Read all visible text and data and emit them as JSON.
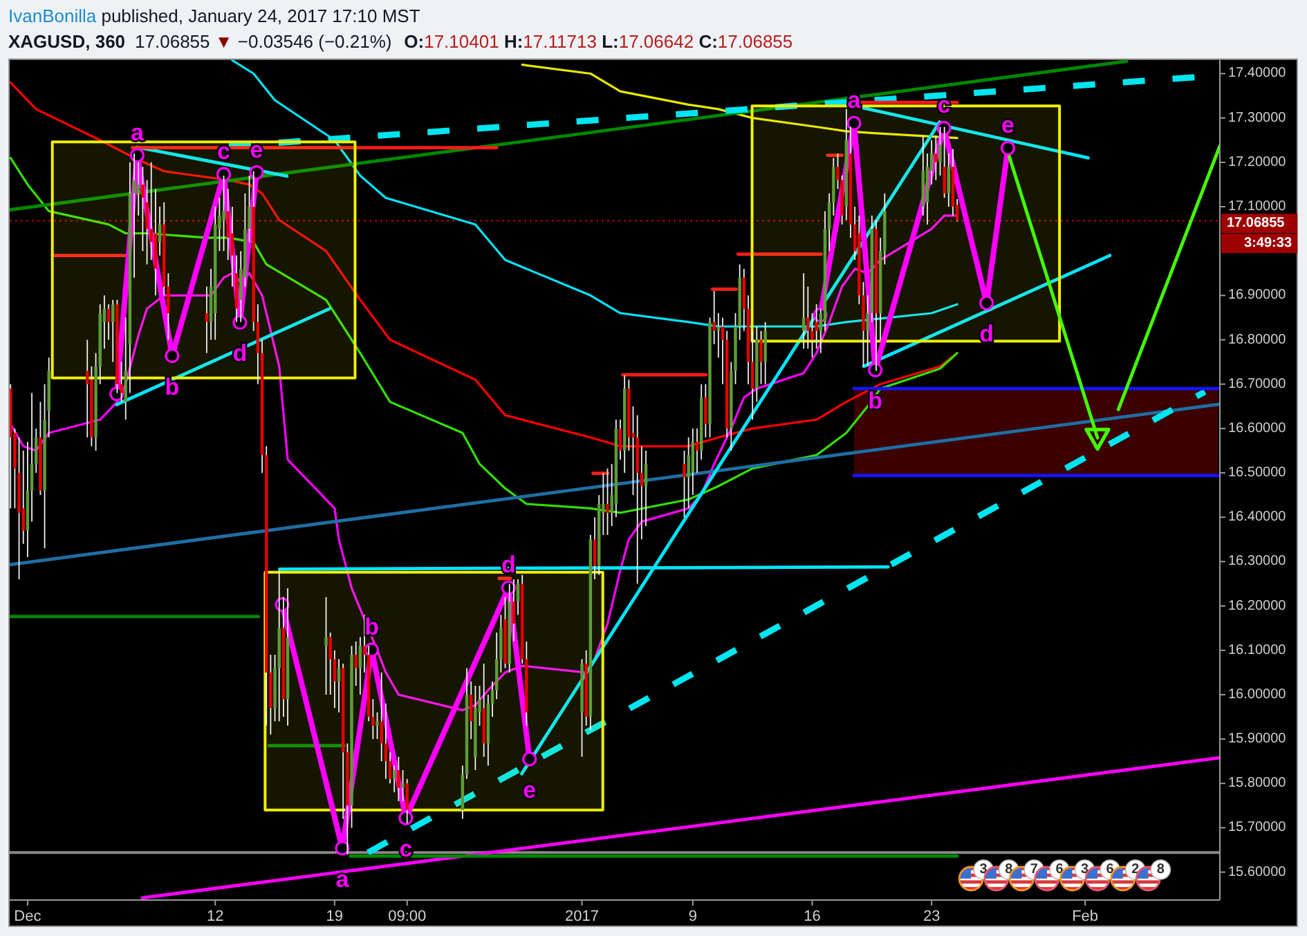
{
  "chart_data": {
    "type": "candlestick",
    "title": "XAGUSD, 360",
    "subtitle": "IvanBonilla published, January 24, 2017 17:10 MST",
    "x": [
      "2016-11-30T03:00",
      "2016-11-30T09:00",
      "2016-11-30T15:00",
      "2016-11-30T21:00",
      "2016-12-01T03:00",
      "2016-12-01T09:00",
      "2016-12-01T15:00",
      "2016-12-01T21:00",
      "2016-12-02T03:00",
      "2016-12-02T09:00",
      "2016-12-04T15:00",
      "2016-12-04T21:00",
      "2016-12-05T03:00",
      "2016-12-05T09:00",
      "2016-12-05T15:00",
      "2016-12-05T21:00",
      "2016-12-06T03:00",
      "2016-12-06T09:00",
      "2016-12-06T15:00",
      "2016-12-06T21:00",
      "2016-12-07T03:00",
      "2016-12-07T09:00",
      "2016-12-07T15:00",
      "2016-12-07T21:00",
      "2016-12-08T03:00",
      "2016-12-08T09:00",
      "2016-12-08T15:00",
      "2016-12-08T21:00",
      "2016-12-09T03:00",
      "2016-12-09T09:00",
      "2016-12-11T15:00",
      "2016-12-11T21:00",
      "2016-12-12T03:00",
      "2016-12-12T09:00",
      "2016-12-12T15:00",
      "2016-12-12T21:00",
      "2016-12-13T03:00",
      "2016-12-13T09:00",
      "2016-12-13T15:00",
      "2016-12-13T21:00",
      "2016-12-14T03:00",
      "2016-12-14T09:00",
      "2016-12-14T15:00",
      "2016-12-14T21:00",
      "2016-12-15T03:00",
      "2016-12-15T09:00",
      "2016-12-15T15:00",
      "2016-12-15T21:00",
      "2016-12-16T03:00",
      "2016-12-16T09:00",
      "2016-12-18T15:00",
      "2016-12-18T21:00",
      "2016-12-19T03:00",
      "2016-12-19T09:00",
      "2016-12-19T15:00",
      "2016-12-19T21:00",
      "2016-12-20T03:00",
      "2016-12-20T09:00",
      "2016-12-20T15:00",
      "2016-12-20T21:00",
      "2016-12-21T03:00",
      "2016-12-21T09:00",
      "2016-12-21T15:00",
      "2016-12-21T21:00",
      "2016-12-22T03:00",
      "2016-12-22T09:00",
      "2016-12-22T15:00",
      "2016-12-22T21:00",
      "2016-12-23T03:00",
      "2016-12-23T09:00",
      "2016-12-26T15:00",
      "2016-12-26T21:00",
      "2016-12-27T03:00",
      "2016-12-27T09:00",
      "2016-12-27T15:00",
      "2016-12-27T21:00",
      "2016-12-28T03:00",
      "2016-12-28T09:00",
      "2016-12-28T15:00",
      "2016-12-28T21:00",
      "2016-12-29T03:00",
      "2016-12-29T09:00",
      "2016-12-29T15:00",
      "2016-12-29T21:00",
      "2016-12-30T03:00",
      "2016-12-30T09:00",
      "2017-01-02T15:00",
      "2017-01-02T21:00",
      "2017-01-03T03:00",
      "2017-01-03T09:00",
      "2017-01-03T15:00",
      "2017-01-03T21:00",
      "2017-01-04T03:00",
      "2017-01-04T09:00",
      "2017-01-04T15:00",
      "2017-01-04T21:00",
      "2017-01-05T03:00",
      "2017-01-05T09:00",
      "2017-01-05T15:00",
      "2017-01-05T21:00",
      "2017-01-06T03:00",
      "2017-01-06T09:00",
      "2017-01-08T15:00",
      "2017-01-08T21:00",
      "2017-01-09T03:00",
      "2017-01-09T09:00",
      "2017-01-09T15:00",
      "2017-01-09T21:00",
      "2017-01-10T03:00",
      "2017-01-10T09:00",
      "2017-01-10T15:00",
      "2017-01-10T21:00",
      "2017-01-11T03:00",
      "2017-01-11T09:00",
      "2017-01-11T15:00",
      "2017-01-11T21:00",
      "2017-01-12T03:00",
      "2017-01-12T09:00",
      "2017-01-12T15:00",
      "2017-01-12T21:00",
      "2017-01-13T03:00",
      "2017-01-13T09:00",
      "2017-01-15T15:00",
      "2017-01-15T21:00",
      "2017-01-16T03:00",
      "2017-01-16T09:00",
      "2017-01-16T15:00",
      "2017-01-16T21:00",
      "2017-01-17T03:00",
      "2017-01-17T09:00",
      "2017-01-17T15:00",
      "2017-01-17T21:00",
      "2017-01-18T03:00",
      "2017-01-18T09:00",
      "2017-01-18T15:00",
      "2017-01-18T21:00",
      "2017-01-19T03:00",
      "2017-01-19T09:00",
      "2017-01-19T15:00",
      "2017-01-19T21:00",
      "2017-01-20T03:00",
      "2017-01-20T09:00",
      "2017-01-22T15:00",
      "2017-01-22T21:00",
      "2017-01-23T03:00",
      "2017-01-23T09:00",
      "2017-01-23T15:00",
      "2017-01-23T21:00",
      "2017-01-24T03:00",
      "2017-01-24T09:00",
      "2017-01-24T15:00"
    ],
    "ohlc": [
      [
        16.69,
        16.7,
        16.42,
        16.58
      ],
      [
        16.59,
        16.6,
        16.42,
        16.51
      ],
      [
        16.5,
        16.58,
        16.26,
        16.41
      ],
      [
        16.42,
        16.55,
        16.34,
        16.37
      ],
      [
        16.37,
        16.57,
        16.31,
        16.46
      ],
      [
        16.46,
        16.68,
        16.39,
        16.52
      ],
      [
        16.52,
        16.6,
        16.5,
        16.58
      ],
      [
        16.58,
        16.66,
        16.45,
        16.46
      ],
      [
        16.46,
        16.7,
        16.33,
        16.62
      ],
      [
        16.64,
        16.76,
        16.58,
        16.73
      ],
      [
        16.73,
        16.8,
        16.58,
        16.7
      ],
      [
        16.71,
        16.74,
        16.56,
        16.58
      ],
      [
        16.58,
        16.77,
        16.55,
        16.74
      ],
      [
        16.74,
        16.88,
        16.7,
        16.86
      ],
      [
        16.84,
        16.9,
        16.78,
        16.87
      ],
      [
        16.87,
        16.88,
        16.8,
        16.84
      ],
      [
        16.84,
        16.89,
        16.75,
        16.88
      ],
      [
        16.88,
        16.89,
        16.68,
        16.7
      ],
      [
        16.7,
        16.75,
        16.66,
        16.68
      ],
      [
        16.66,
        16.85,
        16.62,
        16.73
      ],
      [
        16.79,
        17.2,
        16.68,
        17.13
      ],
      [
        17.13,
        17.22,
        16.94,
        17.16
      ],
      [
        17.13,
        17.2,
        17.08,
        17.15
      ],
      [
        17.15,
        17.19,
        17.0,
        17.12
      ],
      [
        17.11,
        17.16,
        16.97,
        17.05
      ],
      [
        17.05,
        17.2,
        16.98,
        17.02
      ],
      [
        17.04,
        17.14,
        16.9,
        16.96
      ],
      [
        17.02,
        17.1,
        16.99,
        17.06
      ],
      [
        17.06,
        17.11,
        16.9,
        16.92
      ],
      [
        16.92,
        16.95,
        16.8,
        16.86
      ],
      [
        16.86,
        16.92,
        16.77,
        16.84
      ],
      [
        16.84,
        16.96,
        16.8,
        16.92
      ],
      [
        16.86,
        17.1,
        16.8,
        17.06
      ],
      [
        17.05,
        17.12,
        17.0,
        17.08
      ],
      [
        17.07,
        17.17,
        17.0,
        17.09
      ],
      [
        17.09,
        17.14,
        16.98,
        17.03
      ],
      [
        17.04,
        17.1,
        16.92,
        16.99
      ],
      [
        16.95,
        16.99,
        16.84,
        16.87
      ],
      [
        16.89,
        17.0,
        16.84,
        16.96
      ],
      [
        16.94,
        17.13,
        16.92,
        17.05
      ],
      [
        17.05,
        17.17,
        17.02,
        17.1
      ],
      [
        17.1,
        17.18,
        16.82,
        16.84
      ],
      [
        16.84,
        16.88,
        16.7,
        16.77
      ],
      [
        16.77,
        16.8,
        16.5,
        16.54
      ],
      [
        16.54,
        16.56,
        15.93,
        16.05
      ],
      [
        16.05,
        16.09,
        15.91,
        15.97
      ],
      [
        15.97,
        16.09,
        15.94,
        16.06
      ],
      [
        16.06,
        16.28,
        15.94,
        16.15
      ],
      [
        16.15,
        16.22,
        15.95,
        15.99
      ],
      [
        15.99,
        16.24,
        15.93,
        16.13
      ],
      [
        16.11,
        16.22,
        16.0,
        16.13
      ],
      [
        16.13,
        16.14,
        16.0,
        16.08
      ],
      [
        16.08,
        16.1,
        15.97,
        16.03
      ],
      [
        16.03,
        16.08,
        15.96,
        16.06
      ],
      [
        16.06,
        16.07,
        15.72,
        15.87
      ],
      [
        15.87,
        15.89,
        15.64,
        15.75
      ],
      [
        15.75,
        16.11,
        15.7,
        16.09
      ],
      [
        16.09,
        16.12,
        16.02,
        16.06
      ],
      [
        16.06,
        16.13,
        16.0,
        16.11
      ],
      [
        16.11,
        16.18,
        16.05,
        16.09
      ],
      [
        16.09,
        16.11,
        15.94,
        15.95
      ],
      [
        15.95,
        15.99,
        15.9,
        15.93
      ],
      [
        15.93,
        15.96,
        15.9,
        15.94
      ],
      [
        15.94,
        16.05,
        15.85,
        15.89
      ],
      [
        15.89,
        15.98,
        15.81,
        15.85
      ],
      [
        15.85,
        15.87,
        15.8,
        15.81
      ],
      [
        15.81,
        15.84,
        15.78,
        15.83
      ],
      [
        15.83,
        15.86,
        15.76,
        15.79
      ],
      [
        15.79,
        15.83,
        15.76,
        15.8
      ],
      [
        15.8,
        15.81,
        15.71,
        15.74
      ],
      [
        15.74,
        15.84,
        15.72,
        15.82
      ],
      [
        15.82,
        16.06,
        15.81,
        16.0
      ],
      [
        16.0,
        16.03,
        15.9,
        15.94
      ],
      [
        15.86,
        16.02,
        15.83,
        15.97
      ],
      [
        15.96,
        16.02,
        15.93,
        15.99
      ],
      [
        15.97,
        16.07,
        15.86,
        15.89
      ],
      [
        15.89,
        16.0,
        15.84,
        15.98
      ],
      [
        15.98,
        16.03,
        15.95,
        16.01
      ],
      [
        16.01,
        16.14,
        15.99,
        16.08
      ],
      [
        16.08,
        16.18,
        16.05,
        16.15
      ],
      [
        16.17,
        16.22,
        16.06,
        16.07
      ],
      [
        16.07,
        16.25,
        16.05,
        16.21
      ],
      [
        16.21,
        16.26,
        16.12,
        16.16
      ],
      [
        16.21,
        16.26,
        16.18,
        16.25
      ],
      [
        16.25,
        16.27,
        16.07,
        16.08
      ],
      [
        16.08,
        16.12,
        15.93,
        15.96
      ],
      [
        15.96,
        16.08,
        15.86,
        16.07
      ],
      [
        16.07,
        16.1,
        15.93,
        15.95
      ],
      [
        15.95,
        16.36,
        15.92,
        16.35
      ],
      [
        16.35,
        16.4,
        16.26,
        16.29
      ],
      [
        16.29,
        16.45,
        16.27,
        16.43
      ],
      [
        16.41,
        16.5,
        16.36,
        16.43
      ],
      [
        16.43,
        16.51,
        16.36,
        16.41
      ],
      [
        16.41,
        16.52,
        16.38,
        16.45
      ],
      [
        16.43,
        16.62,
        16.4,
        16.6
      ],
      [
        16.6,
        16.62,
        16.53,
        16.55
      ],
      [
        16.55,
        16.72,
        16.5,
        16.69
      ],
      [
        16.69,
        16.71,
        16.55,
        16.58
      ],
      [
        16.59,
        16.65,
        16.45,
        16.58
      ],
      [
        16.58,
        16.63,
        16.25,
        16.5
      ],
      [
        16.5,
        16.56,
        16.35,
        16.47
      ],
      [
        16.47,
        16.55,
        16.38,
        16.52
      ],
      [
        16.52,
        16.55,
        16.4,
        16.49
      ],
      [
        16.49,
        16.58,
        16.42,
        16.54
      ],
      [
        16.5,
        16.6,
        16.45,
        16.57
      ],
      [
        16.57,
        16.6,
        16.5,
        16.55
      ],
      [
        16.55,
        16.7,
        16.53,
        16.67
      ],
      [
        16.67,
        16.7,
        16.58,
        16.61
      ],
      [
        16.61,
        16.85,
        16.58,
        16.84
      ],
      [
        16.84,
        16.91,
        16.79,
        16.82
      ],
      [
        16.82,
        16.86,
        16.76,
        16.83
      ],
      [
        16.83,
        16.85,
        16.7,
        16.8
      ],
      [
        16.8,
        16.82,
        16.58,
        16.6
      ],
      [
        16.6,
        16.75,
        16.55,
        16.73
      ],
      [
        16.73,
        16.86,
        16.7,
        16.83
      ],
      [
        16.83,
        16.97,
        16.8,
        16.94
      ],
      [
        16.94,
        16.96,
        16.82,
        16.87
      ],
      [
        16.87,
        16.9,
        16.7,
        16.75
      ],
      [
        16.75,
        16.82,
        16.62,
        16.69
      ],
      [
        16.69,
        16.83,
        16.66,
        16.8
      ],
      [
        16.8,
        16.82,
        16.7,
        16.75
      ],
      [
        16.75,
        16.84,
        16.7,
        16.82
      ],
      [
        16.82,
        16.95,
        16.78,
        16.85
      ],
      [
        16.85,
        16.92,
        16.78,
        16.82
      ],
      [
        16.82,
        16.86,
        16.76,
        16.8
      ],
      [
        16.84,
        16.88,
        16.78,
        16.82
      ],
      [
        16.82,
        16.87,
        16.77,
        16.86
      ],
      [
        16.84,
        17.09,
        16.82,
        17.05
      ],
      [
        17.05,
        17.13,
        17.0,
        17.11
      ],
      [
        17.11,
        17.21,
        17.08,
        17.19
      ],
      [
        17.19,
        17.22,
        17.14,
        17.16
      ],
      [
        17.16,
        17.17,
        17.06,
        17.08
      ],
      [
        17.1,
        17.32,
        17.07,
        17.25
      ],
      [
        17.22,
        17.28,
        17.03,
        17.06
      ],
      [
        17.06,
        17.1,
        16.98,
        17.0
      ],
      [
        17.04,
        17.08,
        16.88,
        16.9
      ],
      [
        16.9,
        16.93,
        16.74,
        16.82
      ],
      [
        16.82,
        16.9,
        16.74,
        16.86
      ],
      [
        16.86,
        17.08,
        16.84,
        17.05
      ],
      [
        17.05,
        17.07,
        16.73,
        16.86
      ],
      [
        16.86,
        17.03,
        16.8,
        17.0
      ],
      [
        17.0,
        17.13,
        16.97,
        17.09
      ],
      [
        17.1,
        17.26,
        17.08,
        17.18
      ],
      [
        17.11,
        17.22,
        17.06,
        17.19
      ],
      [
        17.18,
        17.25,
        17.15,
        17.22
      ],
      [
        17.22,
        17.26,
        17.16,
        17.2
      ],
      [
        17.2,
        17.28,
        17.17,
        17.24
      ],
      [
        17.19,
        17.28,
        17.12,
        17.13
      ],
      [
        17.13,
        17.22,
        17.1,
        17.19
      ],
      [
        17.19,
        17.23,
        17.08,
        17.1
      ],
      [
        17.10401,
        17.11713,
        17.06642,
        17.06855
      ]
    ],
    "color": "#f0f0f0",
    "colors": [
      "#e50000",
      "#e50000",
      "#e50000",
      "#e50000",
      "#5e9c37",
      "#5e9c37",
      "#5e9c37",
      "#e50000",
      "#5e9c37",
      "#5e9c37",
      "#e50000",
      "#e50000",
      "#5e9c37",
      "#5e9c37",
      "#5e9c37",
      "#e50000",
      "#5e9c37",
      "#e50000",
      "#e50000",
      "#5e9c37",
      "#5e9c37",
      "#5e9c37",
      "#5e9c37",
      "#e50000",
      "#e50000",
      "#e50000",
      "#e50000",
      "#5e9c37",
      "#e50000",
      "#e50000",
      "#e50000",
      "#5e9c37",
      "#5e9c37",
      "#5e9c37",
      "#5e9c37",
      "#e50000",
      "#e50000",
      "#e50000",
      "#5e9c37",
      "#5e9c37",
      "#5e9c37",
      "#e50000",
      "#e50000",
      "#e50000",
      "#e50000",
      "#e50000",
      "#5e9c37",
      "#5e9c37",
      "#e50000",
      "#5e9c37",
      "#5e9c37",
      "#e50000",
      "#e50000",
      "#5e9c37",
      "#e50000",
      "#e50000",
      "#5e9c37",
      "#e50000",
      "#5e9c37",
      "#e50000",
      "#e50000",
      "#e50000",
      "#5e9c37",
      "#e50000",
      "#e50000",
      "#e50000",
      "#5e9c37",
      "#e50000",
      "#5e9c37",
      "#e50000",
      "#5e9c37",
      "#5e9c37",
      "#e50000",
      "#5e9c37",
      "#5e9c37",
      "#e50000",
      "#5e9c37",
      "#5e9c37",
      "#5e9c37",
      "#5e9c37",
      "#e50000",
      "#5e9c37",
      "#e50000",
      "#5e9c37",
      "#e50000",
      "#e50000",
      "#5e9c37",
      "#e50000",
      "#5e9c37",
      "#e50000",
      "#5e9c37",
      "#5e9c37",
      "#e50000",
      "#5e9c37",
      "#5e9c37",
      "#e50000",
      "#5e9c37",
      "#e50000",
      "#e50000",
      "#e50000",
      "#e50000",
      "#5e9c37",
      "#e50000",
      "#5e9c37",
      "#5e9c37",
      "#e50000",
      "#5e9c37",
      "#e50000",
      "#5e9c37",
      "#e50000",
      "#5e9c37",
      "#e50000",
      "#e50000",
      "#5e9c37",
      "#5e9c37",
      "#5e9c37",
      "#e50000",
      "#e50000",
      "#e50000",
      "#5e9c37",
      "#e50000",
      "#5e9c37",
      "#5e9c37",
      "#e50000",
      "#e50000",
      "#e50000",
      "#5e9c37",
      "#5e9c37",
      "#5e9c37",
      "#5e9c37",
      "#e50000",
      "#e50000",
      "#5e9c37",
      "#e50000",
      "#e50000",
      "#e50000",
      "#e50000",
      "#5e9c37",
      "#5e9c37",
      "#e50000",
      "#5e9c37",
      "#5e9c37",
      "#5e9c37",
      "#5e9c37",
      "#5e9c37",
      "#e50000",
      "#5e9c37",
      "#e50000",
      "#5e9c37",
      "#e50000",
      "#e50000"
    ],
    "xlim": [
      "2016-11-30T01:48",
      "2017-02-09T00:36"
    ],
    "xticks": [
      {
        "value": "2016-12-01T03:00",
        "label": "Dec"
      },
      {
        "value": "2016-12-12T03:00",
        "label": "12"
      },
      {
        "value": "2016-12-19T03:00",
        "label": "19"
      },
      {
        "value": "2016-12-23T09:00",
        "label": "09:00"
      },
      {
        "value": "2017-01-02T15:00",
        "label": "2017"
      },
      {
        "value": "2017-01-09T03:00",
        "label": "9"
      },
      {
        "value": "2017-01-16T03:00",
        "label": "16"
      },
      {
        "value": "2017-01-23T03:00",
        "label": "23"
      },
      {
        "value": "2017-02-01T03:00",
        "label": "Feb"
      }
    ],
    "ylim": [
      15.537,
      17.431
    ],
    "yticks": [
      {
        "value": 15.6,
        "label": "15.60000"
      },
      {
        "value": 15.7,
        "label": "15.70000"
      },
      {
        "value": 15.8,
        "label": "15.80000"
      },
      {
        "value": 15.9,
        "label": "15.90000"
      },
      {
        "value": 16,
        "label": "16.00000"
      },
      {
        "value": 16.1,
        "label": "16.10000"
      },
      {
        "value": 16.2,
        "label": "16.20000"
      },
      {
        "value": 16.3,
        "label": "16.30000"
      },
      {
        "value": 16.4,
        "label": "16.40000"
      },
      {
        "value": 16.5,
        "label": "16.50000"
      },
      {
        "value": 16.6,
        "label": "16.60000"
      },
      {
        "value": 16.7,
        "label": "16.70000"
      },
      {
        "value": 16.8,
        "label": "16.80000"
      },
      {
        "value": 16.9,
        "label": "16.90000"
      },
      {
        "value": 17.1,
        "label": "17.10000"
      },
      {
        "value": 17.2,
        "label": "17.20000"
      },
      {
        "value": 17.3,
        "label": "17.30000"
      },
      {
        "value": 17.4,
        "label": "17.40000"
      }
    ],
    "ref_lines": [
      {
        "axis": "y",
        "value": 17.06855,
        "label": "17.06855",
        "color": "#9e0000",
        "line_style": "dotted"
      },
      {
        "axis": "y",
        "value": 15.644,
        "color": "#8a8a8a"
      }
    ],
    "series": [
      {
        "type": "line",
        "color": "#3c0000",
        "x": [
          "2017-01-18T13:48",
          "2017-02-08T21:36"
        ],
        "values": [
          null,
          null
        ],
        "lower": [
          16.494,
          16.494
        ],
        "upper": [
          16.69,
          16.69
        ]
      },
      {
        "type": "line",
        "color": "#e8e800",
        "x": [
          "2016-12-30T03:00",
          "2017-01-03T03:00",
          "2017-01-04T21:00",
          "2017-01-08T21:00",
          "2017-01-10T15:00",
          "2017-01-12T15:00",
          "2017-01-16T09:00",
          "2017-01-18T03:00",
          "2017-01-20T03:00",
          "2017-01-24T15:00"
        ],
        "values": [
          17.42,
          17.4,
          17.36,
          17.33,
          17.32,
          17.3,
          17.28,
          17.27,
          17.265,
          17.255
        ]
      },
      {
        "type": "line",
        "color": "#00e5ff",
        "x": [
          "2016-12-13T03:00",
          "2016-12-14T09:00",
          "2016-12-15T15:00",
          "2016-12-19T03:00",
          "2016-12-20T15:00",
          "2016-12-22T03:00",
          "2016-12-27T09:00",
          "2016-12-29T03:00",
          "2017-01-03T03:00",
          "2017-01-04T21:00",
          "2017-01-08T21:00",
          "2017-01-10T15:00",
          "2017-01-16T09:00",
          "2017-01-18T03:00",
          "2017-01-23T03:00",
          "2017-01-24T15:00"
        ],
        "values": [
          17.43,
          17.4,
          17.34,
          17.25,
          17.17,
          17.12,
          17.06,
          16.98,
          16.9,
          16.86,
          16.84,
          16.83,
          16.83,
          16.84,
          16.86,
          16.88
        ]
      },
      {
        "type": "line",
        "color": "#ff0000",
        "x": [
          "2016-11-30T03:00",
          "2016-12-01T15:00",
          "2016-12-05T09:00",
          "2016-12-07T09:00",
          "2016-12-09T03:00",
          "2016-12-12T21:00",
          "2016-12-14T03:00",
          "2016-12-14T21:00",
          "2016-12-15T21:00",
          "2016-12-18T15:00",
          "2016-12-20T15:00",
          "2016-12-22T09:00",
          "2016-12-27T09:00",
          "2016-12-29T03:00",
          "2017-01-03T03:00",
          "2017-01-04T21:00",
          "2017-01-08T21:00",
          "2017-01-10T15:00",
          "2017-01-12T15:00",
          "2017-01-16T09:00",
          "2017-01-18T03:00",
          "2017-01-20T03:00",
          "2017-01-23T15:00",
          "2017-01-24T15:00"
        ],
        "values": [
          17.38,
          17.32,
          17.25,
          17.21,
          17.18,
          17.16,
          17.15,
          17.13,
          17.07,
          17.0,
          16.89,
          16.8,
          16.71,
          16.63,
          16.58,
          16.56,
          16.56,
          16.58,
          16.6,
          16.62,
          16.66,
          16.7,
          16.74,
          16.77
        ]
      },
      {
        "type": "line",
        "color": "#33e000",
        "x": [
          "2016-11-30T03:00",
          "2016-12-01T03:00",
          "2016-12-02T09:00",
          "2016-12-05T21:00",
          "2016-12-06T21:00",
          "2016-12-08T03:00",
          "2016-12-11T15:00",
          "2016-12-12T21:00",
          "2016-12-14T09:00",
          "2016-12-15T03:00",
          "2016-12-18T15:00",
          "2016-12-20T15:00",
          "2016-12-22T09:00",
          "2016-12-26T15:00",
          "2016-12-27T15:00",
          "2016-12-29T03:00",
          "2016-12-30T09:00",
          "2017-01-03T03:00",
          "2017-01-04T21:00",
          "2017-01-08T21:00",
          "2017-01-10T15:00",
          "2017-01-12T15:00",
          "2017-01-16T09:00",
          "2017-01-18T03:00",
          "2017-01-19T09:00",
          "2017-01-20T03:00",
          "2017-01-23T15:00",
          "2017-01-24T15:00"
        ],
        "values": [
          17.21,
          17.15,
          17.09,
          17.06,
          17.04,
          17.04,
          17.03,
          17.03,
          17.02,
          16.97,
          16.89,
          16.77,
          16.66,
          16.59,
          16.52,
          16.465,
          16.43,
          16.42,
          16.41,
          16.44,
          16.47,
          16.51,
          16.54,
          16.59,
          16.65,
          16.69,
          16.735,
          16.77
        ]
      },
      {
        "type": "line",
        "color": "#ff00ff",
        "x": [
          "2016-11-30T03:00",
          "2016-11-30T21:00",
          "2016-12-01T15:00",
          "2016-12-02T09:00",
          "2016-12-05T09:00",
          "2016-12-06T09:00",
          "2016-12-06T21:00",
          "2016-12-07T15:00",
          "2016-12-08T03:00",
          "2016-12-09T03:00",
          "2016-12-11T21:00",
          "2016-12-12T15:00",
          "2016-12-13T03:00",
          "2016-12-13T15:00",
          "2016-12-14T03:00",
          "2016-12-14T21:00",
          "2016-12-15T21:00",
          "2016-12-16T09:00",
          "2016-12-19T03:00",
          "2016-12-19T09:00",
          "2016-12-20T03:00",
          "2016-12-20T21:00",
          "2016-12-21T15:00",
          "2016-12-22T03:00",
          "2016-12-22T21:00",
          "2016-12-26T15:00",
          "2016-12-27T09:00",
          "2016-12-28T03:00",
          "2016-12-29T03:00",
          "2016-12-30T03:00",
          "2017-01-02T21:00",
          "2017-01-03T09:00",
          "2017-01-04T03:00",
          "2017-01-04T21:00",
          "2017-01-05T09:00",
          "2017-01-06T03:00",
          "2017-01-08T21:00",
          "2017-01-09T15:00",
          "2017-01-10T09:00",
          "2017-01-11T09:00",
          "2017-01-12T03:00",
          "2017-01-12T21:00",
          "2017-01-15T15:00",
          "2017-01-16T09:00",
          "2017-01-17T03:00",
          "2017-01-17T21:00",
          "2017-01-18T15:00",
          "2017-01-19T09:00",
          "2017-01-20T03:00",
          "2017-01-23T03:00",
          "2017-01-23T21:00",
          "2017-01-24T15:00"
        ],
        "values": [
          16.61,
          16.56,
          16.55,
          16.59,
          16.62,
          16.66,
          16.7,
          16.81,
          16.87,
          16.9,
          16.9,
          16.94,
          16.95,
          16.93,
          16.95,
          16.9,
          16.74,
          16.53,
          16.42,
          16.35,
          16.24,
          16.17,
          16.1,
          16.05,
          16.0,
          15.965,
          15.976,
          16.01,
          16.05,
          16.065,
          16.05,
          16.08,
          16.16,
          16.28,
          16.35,
          16.39,
          16.42,
          16.45,
          16.52,
          16.6,
          16.67,
          16.69,
          16.725,
          16.77,
          16.84,
          16.92,
          16.96,
          16.95,
          16.98,
          17.05,
          17.08,
          17.08
        ]
      },
      {
        "type": "line",
        "color": "#008800",
        "x": [
          "2016-11-30T01:48",
          "2017-02-03T13:12"
        ],
        "values": [
          17.093,
          17.428
        ]
      },
      {
        "type": "line",
        "color": "#00e5f0",
        "line_style": "dashed",
        "x": [
          "2016-12-12T22:12",
          "2017-02-09T00:36"
        ],
        "values": [
          17.236,
          17.396
        ]
      },
      {
        "type": "line",
        "color": "#1f6ea3",
        "x": [
          "2016-11-30T01:48",
          "2017-02-09T00:36"
        ],
        "values": [
          16.293,
          16.655
        ]
      },
      {
        "type": "line",
        "color": "#00e5f0",
        "line_style": "dashed",
        "x": [
          "2016-12-21T01:48",
          "2017-02-08T03:36"
        ],
        "values": [
          15.644,
          16.683
        ]
      },
      {
        "type": "line",
        "color": "#ff00ff",
        "x": [
          "2016-12-07T20:24",
          "2017-02-09T00:36"
        ],
        "values": [
          15.542,
          15.858
        ]
      },
      {
        "type": "line",
        "color": "#00e5ff",
        "x": [
          "2016-12-15T21:36",
          "2017-01-20T13:48"
        ],
        "values": [
          16.283,
          16.288
        ]
      },
      {
        "type": "line",
        "color": "#00e5ff",
        "x": [
          "2016-12-07T13:12",
          "2016-12-16T07:48"
        ],
        "values": [
          17.234,
          17.169
        ]
      },
      {
        "type": "line",
        "color": "#00e5ff",
        "x": [
          "2016-12-06T08:24",
          "2016-12-18T19:48"
        ],
        "values": [
          16.654,
          16.87
        ]
      },
      {
        "type": "line",
        "color": "#00e5ff",
        "x": [
          "2017-01-19T02:00",
          "2017-02-01T07:12"
        ],
        "values": [
          17.323,
          17.21
        ]
      },
      {
        "type": "line",
        "color": "#00e5ff",
        "x": [
          "2017-01-19T03:36",
          "2017-02-02T13:48"
        ],
        "values": [
          16.74,
          16.99
        ]
      },
      {
        "type": "line",
        "color": "#00e5ff",
        "x": [
          "2016-12-30T02:24",
          "2017-01-23T14:24"
        ],
        "values": [
          15.822,
          17.291
        ]
      },
      {
        "type": "line",
        "color": "#008800",
        "x": [
          "2016-11-30T01:48",
          "2016-12-14T15:36"
        ],
        "values": [
          16.176,
          16.176
        ]
      },
      {
        "type": "line",
        "color": "#008800",
        "x": [
          "2016-12-15T06:36",
          "2016-12-19T16:12"
        ],
        "values": [
          15.885,
          15.885
        ]
      },
      {
        "type": "line",
        "color": "#008800",
        "x": [
          "2016-12-20T01:12",
          "2017-01-24T15:00"
        ],
        "values": [
          15.636,
          15.636
        ]
      },
      {
        "type": "line",
        "color": "#ff1a1a",
        "x": [
          "2016-12-02T13:48",
          "2016-12-06T21:36"
        ],
        "values": [
          16.99,
          16.99
        ]
      },
      {
        "type": "line",
        "color": "#ff1a1a",
        "x": [
          "2016-12-07T06:36",
          "2016-12-28T15:00"
        ],
        "values": [
          17.233,
          17.233
        ]
      },
      {
        "type": "line",
        "color": "#ff1a1a",
        "x": [
          "2016-12-28T18:36",
          "2016-12-29T10:12"
        ],
        "values": [
          16.262,
          16.262
        ]
      },
      {
        "type": "line",
        "color": "#ff1a1a",
        "x": [
          "2017-01-03T06:36",
          "2017-01-04T03:36"
        ],
        "values": [
          16.499,
          16.499
        ]
      },
      {
        "type": "line",
        "color": "#ff1a1a",
        "x": [
          "2017-01-05T00:36",
          "2017-01-09T21:36"
        ],
        "values": [
          16.721,
          16.721
        ]
      },
      {
        "type": "line",
        "color": "#ff1a1a",
        "x": [
          "2017-01-10T06:36",
          "2017-01-11T16:12"
        ],
        "values": [
          16.914,
          16.914
        ]
      },
      {
        "type": "line",
        "color": "#ff1a1a",
        "x": [
          "2017-01-11T18:36",
          "2017-01-16T15:36"
        ],
        "values": [
          16.993,
          16.993
        ]
      },
      {
        "type": "line",
        "color": "#ff1a1a",
        "x": [
          "2017-01-17T00:36",
          "2017-01-17T21:00"
        ],
        "values": [
          17.216,
          17.216
        ]
      },
      {
        "type": "line",
        "color": "#ff1a1a",
        "x": [
          "2017-01-19T00:00",
          "2017-01-24T15:00"
        ],
        "values": [
          17.335,
          17.335
        ]
      },
      {
        "type": "line",
        "color": "#f0f000",
        "line_style": "solid",
        "x": [
          "2016-12-02T13:48",
          "2016-12-20T07:48"
        ],
        "values": [
          null,
          null
        ],
        "lower": [
          16.714,
          16.714
        ],
        "upper": [
          17.246,
          17.246
        ]
      },
      {
        "type": "line",
        "color": "#f0f000",
        "line_style": "solid",
        "x": [
          "2016-12-15T01:12",
          "2017-01-03T20:24"
        ],
        "values": [
          null,
          null
        ],
        "lower": [
          15.74,
          15.74
        ],
        "upper": [
          16.276,
          16.276
        ]
      },
      {
        "type": "line",
        "color": "#f0f000",
        "line_style": "solid",
        "x": [
          "2017-01-12T14:24",
          "2017-01-30T15:00"
        ],
        "values": [
          null,
          null
        ],
        "lower": [
          16.797,
          16.797
        ],
        "upper": [
          17.327,
          17.327
        ]
      },
      {
        "type": "line",
        "color": "#1414ff",
        "x": [
          "2017-01-18T13:48",
          "2017-02-08T21:36"
        ],
        "values": [
          16.69,
          16.69
        ]
      },
      {
        "type": "line",
        "color": "#1414ff",
        "x": [
          "2017-01-18T13:48",
          "2017-02-08T21:36"
        ],
        "values": [
          16.494,
          16.494
        ]
      },
      {
        "type": "line",
        "color": "#ff00ff",
        "marker": "circle",
        "x": [
          "2016-12-06T08:24",
          "2016-12-07T13:12",
          "2016-12-09T14:24",
          "2016-12-12T15:00",
          "2016-12-13T13:48",
          "2016-12-14T13:12"
        ],
        "values": [
          16.678,
          17.216,
          16.764,
          17.173,
          16.839,
          17.177
        ]
      },
      {
        "type": "line",
        "color": "#ff00ff",
        "marker": "circle",
        "x": [
          "2016-12-16T01:12",
          "2016-12-19T13:48",
          "2016-12-21T07:12",
          "2016-12-23T07:12",
          "2016-12-29T07:48",
          "2016-12-30T13:12"
        ],
        "values": [
          16.203,
          15.654,
          16.101,
          15.722,
          16.241,
          15.855
        ]
      },
      {
        "type": "line",
        "color": "#ff00ff",
        "marker": "circle",
        "x": [
          "2017-01-16T14:24",
          "2017-01-18T13:48",
          "2017-01-19T19:48",
          "2017-01-23T20:24",
          "2017-01-26T08:24",
          "2017-01-27T14:24"
        ],
        "values": [
          16.856,
          17.288,
          16.732,
          17.277,
          16.883,
          17.232
        ]
      },
      {
        "type": "line",
        "color": "#44ff00",
        "x": [
          "2017-01-27T14:24",
          "2017-02-01T20:24"
        ],
        "values": [
          17.223,
          16.579
        ]
      },
      {
        "type": "scatter",
        "color": "#44ff00",
        "marker": "triangle",
        "x": [
          "2017-02-01T20:24"
        ],
        "values": [
          16.579
        ]
      },
      {
        "type": "line",
        "color": "#44ff00",
        "x": [
          "2017-02-03T01:48",
          "2017-02-09T00:36"
        ],
        "values": [
          16.643,
          17.237
        ]
      }
    ],
    "annotations": [
      "17.06855 ▼ −0.03546 (−0.21%)",
      "O:17.10401 H:17.11713 L:17.06642 C:17.06855",
      "3:49:33",
      "3",
      "8",
      "7",
      "6",
      "3",
      "6",
      "2",
      "8",
      {
        "text": "a",
        "x": "2016-12-07T13:12",
        "y": 17.216
      },
      {
        "text": "b",
        "x": "2016-12-09T14:24",
        "y": 16.764
      },
      {
        "text": "c",
        "x": "2016-12-12T15:00",
        "y": 17.173
      },
      {
        "text": "d",
        "x": "2016-12-13T13:48",
        "y": 16.839
      },
      {
        "text": "e",
        "x": "2016-12-14T13:12",
        "y": 17.177
      },
      {
        "text": "a",
        "x": "2016-12-19T13:48",
        "y": 15.654
      },
      {
        "text": "b",
        "x": "2016-12-21T07:12",
        "y": 16.101
      },
      {
        "text": "c",
        "x": "2016-12-23T07:12",
        "y": 15.722
      },
      {
        "text": "d",
        "x": "2016-12-29T07:48",
        "y": 16.241
      },
      {
        "text": "e",
        "x": "2016-12-30T13:12",
        "y": 15.855
      },
      {
        "text": "a",
        "x": "2017-01-18T13:48",
        "y": 17.288
      },
      {
        "text": "b",
        "x": "2017-01-19T19:48",
        "y": 16.732
      },
      {
        "text": "c",
        "x": "2017-01-23T20:24",
        "y": 17.277
      },
      {
        "text": "d",
        "x": "2017-01-26T08:24",
        "y": 16.883
      },
      {
        "text": "e",
        "x": "2017-01-27T14:24",
        "y": 17.232
      }
    ]
  }
}
